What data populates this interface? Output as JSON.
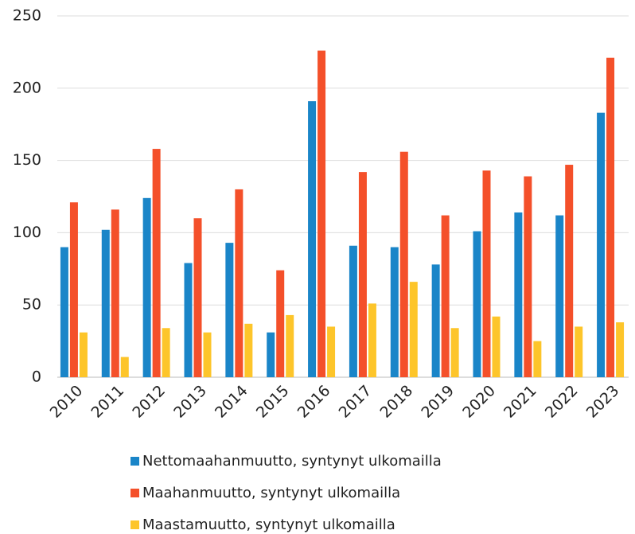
{
  "chart_data": {
    "type": "bar",
    "categories": [
      "2010",
      "2011",
      "2012",
      "2013",
      "2014",
      "2015",
      "2016",
      "2017",
      "2018",
      "2019",
      "2020",
      "2021",
      "2022",
      "2023"
    ],
    "series": [
      {
        "name": "Nettomaahanmuutto, syntynyt ulkomailla",
        "color": "#1a85c8",
        "values": [
          90,
          102,
          124,
          79,
          93,
          31,
          191,
          91,
          90,
          78,
          101,
          114,
          112,
          183
        ]
      },
      {
        "name": "Maahanmuutto, syntynyt ulkomailla",
        "color": "#f4502a",
        "values": [
          121,
          116,
          158,
          110,
          130,
          74,
          226,
          142,
          156,
          112,
          143,
          139,
          147,
          221
        ]
      },
      {
        "name": "Maastamuutto, syntynyt ulkomailla",
        "color": "#fdc52a",
        "values": [
          31,
          14,
          34,
          31,
          37,
          43,
          35,
          51,
          66,
          34,
          42,
          25,
          35,
          38
        ]
      }
    ],
    "ylim": [
      0,
      250
    ],
    "yticks": [
      0,
      50,
      100,
      150,
      200,
      250
    ],
    "grid": true,
    "legend": "bottom"
  }
}
